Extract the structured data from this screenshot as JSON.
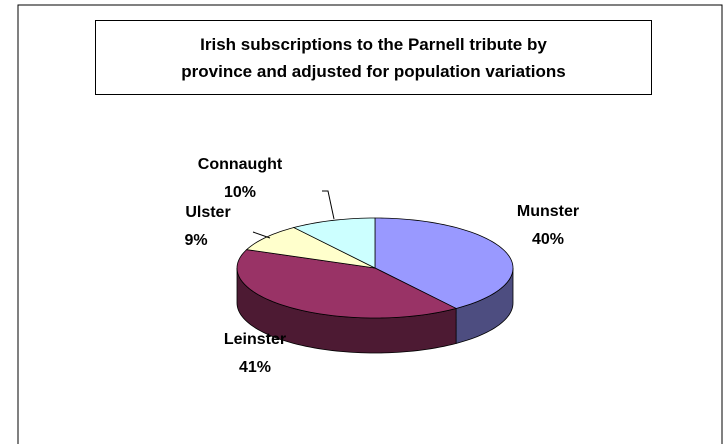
{
  "chart_data": {
    "type": "pie3d",
    "title": "Irish subscriptions to the Parnell tribute by\nprovince and adjusted for population variations",
    "categories": [
      "Munster",
      "Leinster",
      "Ulster",
      "Connaught"
    ],
    "values": [
      40,
      41,
      9,
      10
    ],
    "value_labels": [
      "40%",
      "41%",
      "9%",
      "10%"
    ],
    "colors": [
      "#9999ff",
      "#993366",
      "#ffffcc",
      "#ccffff"
    ]
  }
}
